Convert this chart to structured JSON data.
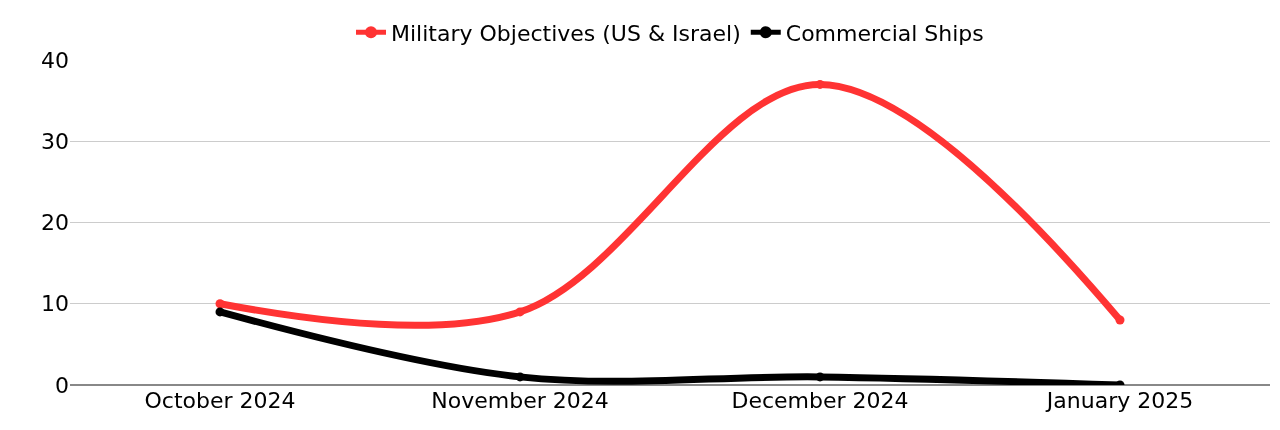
{
  "chart_data": {
    "type": "line",
    "categories": [
      "October 2024",
      "November 2024",
      "December 2024",
      "January 2025"
    ],
    "series": [
      {
        "name": "Military Objectives (US & Israel)",
        "color": "#ff3333",
        "values": [
          10,
          9,
          37,
          8
        ]
      },
      {
        "name": "Commercial Ships",
        "color": "#000000",
        "values": [
          9,
          1,
          1,
          0
        ]
      }
    ],
    "ylim": [
      0,
      40
    ],
    "yticks": [
      0,
      10,
      20,
      30,
      40
    ],
    "grid": "y",
    "legend": "top",
    "marker": "circle",
    "line_style": "solid"
  }
}
